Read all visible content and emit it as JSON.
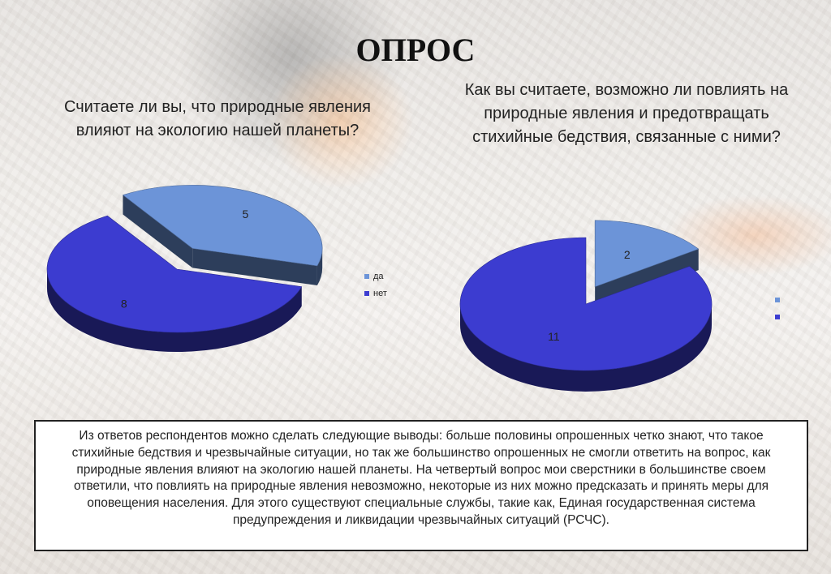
{
  "slide": {
    "title": "ОПРОС",
    "summary": "Из ответов респондентов можно сделать следующие выводы: больше половины опрошенных четко знают, что такое стихийные бедствия и чрезвычайные ситуации, но так же большинство опрошенных не смогли ответить на вопрос, как природные явления влияют на экологию нашей планеты. На четвертый вопрос мои сверстники в большинстве своем ответили, что повлиять на природные явления невозможно, некоторые из них можно предсказать и принять меры для оповещения населения. Для этого существуют специальные службы, такие как, Единая государственная система предупреждения и ликвидации чрезвычайных ситуаций (РСЧС)."
  },
  "chart_data": [
    {
      "type": "pie",
      "title": "Считаете ли вы, что природные явления влияют на экологию нашей планеты?",
      "categories": [
        "да",
        "нет"
      ],
      "values": [
        5,
        8
      ],
      "colors": [
        "#6c94d8",
        "#3c3cd0"
      ],
      "legend": [
        "да",
        "нет"
      ],
      "legend_position": "right",
      "exploded": "да"
    },
    {
      "type": "pie",
      "title": "Как вы считаете, возможно ли повлиять на природные явления  и предотвращать стихийные бедствия, связанные с ними?",
      "categories": [
        "",
        ""
      ],
      "values": [
        2,
        11
      ],
      "colors": [
        "#6c94d8",
        "#3c3cd0"
      ],
      "legend": [
        "",
        ""
      ],
      "legend_position": "right",
      "exploded": "first"
    }
  ]
}
